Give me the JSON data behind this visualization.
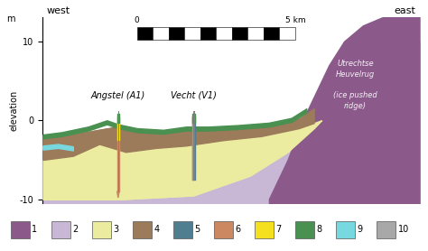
{
  "ylim": [
    -10.5,
    13
  ],
  "xlim": [
    0,
    100
  ],
  "colors": {
    "1_purple": "#8B5A8B",
    "2_lavender": "#C8B8D5",
    "3_yellow": "#ECECA0",
    "4_brown": "#9B7B5A",
    "5_teal": "#4E7E90",
    "6_salmon": "#CC8860",
    "7_bright_yellow": "#F5E020",
    "8_green": "#4A9050",
    "9_cyan": "#78D8E0",
    "10_gray": "#A8A8A8"
  },
  "legend_items": [
    {
      "label": "1",
      "color": "#8B5A8B"
    },
    {
      "label": "2",
      "color": "#C8B8D5"
    },
    {
      "label": "3",
      "color": "#ECECA0"
    },
    {
      "label": "4",
      "color": "#9B7B5A"
    },
    {
      "label": "5",
      "color": "#4E7E90"
    },
    {
      "label": "6",
      "color": "#CC8860"
    },
    {
      "label": "7",
      "color": "#F5E020"
    },
    {
      "label": "8",
      "color": "#4A9050"
    },
    {
      "label": "9",
      "color": "#78D8E0"
    },
    {
      "label": "10",
      "color": "#A8A8A8"
    }
  ]
}
